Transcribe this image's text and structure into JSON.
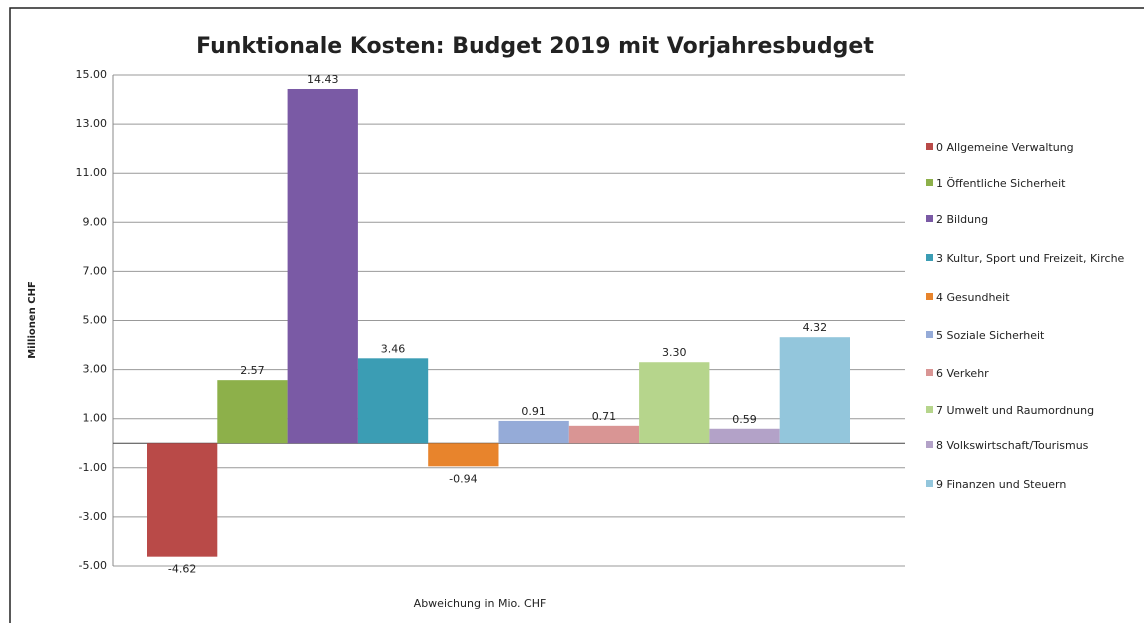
{
  "chart_data": {
    "type": "bar",
    "title": "Funktionale Kosten: Budget 2019 mit Vorjahresbudget",
    "x_label": "Abweichung in Mio. CHF",
    "y_label": "Millionen CHF",
    "categories": [
      null
    ],
    "series": [
      {
        "name": "0 Allgemeine Verwaltung",
        "color": "#b94a48",
        "values": [
          -4.62
        ],
        "value_labels": [
          "-4.62"
        ]
      },
      {
        "name": "1 Öffentliche Sicherheit",
        "color": "#8db04a",
        "values": [
          2.57
        ],
        "value_labels": [
          "2.57"
        ]
      },
      {
        "name": "2 Bildung",
        "color": "#7a5aa5",
        "values": [
          14.43
        ],
        "value_labels": [
          "14.43"
        ]
      },
      {
        "name": "3 Kultur, Sport und Freizeit, Kirche",
        "color": "#3b9db4",
        "values": [
          3.46
        ],
        "value_labels": [
          "3.46"
        ]
      },
      {
        "name": "4 Gesundheit",
        "color": "#e8842c",
        "values": [
          -0.94
        ],
        "value_labels": [
          "-0.94"
        ]
      },
      {
        "name": "5 Soziale Sicherheit",
        "color": "#95abd8",
        "values": [
          0.91
        ],
        "value_labels": [
          "0.91"
        ]
      },
      {
        "name": "6 Verkehr",
        "color": "#d99594",
        "values": [
          0.71
        ],
        "value_labels": [
          "0.71"
        ]
      },
      {
        "name": "7 Umwelt und Raumordnung",
        "color": "#b6d58c",
        "values": [
          3.3
        ],
        "value_labels": [
          "3.30"
        ]
      },
      {
        "name": "8 Volkswirtschaft/Tourismus",
        "color": "#b3a2c8",
        "values": [
          0.59
        ],
        "value_labels": [
          "0.59"
        ]
      },
      {
        "name": "9 Finanzen und Steuern",
        "color": "#93c6dc",
        "values": [
          4.32
        ],
        "value_labels": [
          "4.32"
        ]
      }
    ],
    "ylim": [
      -5,
      15
    ],
    "yticks": [
      {
        "value": -5,
        "label": "-5.00"
      },
      {
        "value": -3,
        "label": "-3.00"
      },
      {
        "value": -1,
        "label": "-1.00"
      },
      {
        "value": 1,
        "label": "1.00"
      },
      {
        "value": 3,
        "label": "3.00"
      },
      {
        "value": 5,
        "label": "5.00"
      },
      {
        "value": 7,
        "label": "7.00"
      },
      {
        "value": 9,
        "label": "9.00"
      },
      {
        "value": 11,
        "label": "11.00"
      },
      {
        "value": 13,
        "label": "13.00"
      },
      {
        "value": 15,
        "label": "15.00"
      }
    ],
    "grid": true,
    "legend": "right"
  }
}
